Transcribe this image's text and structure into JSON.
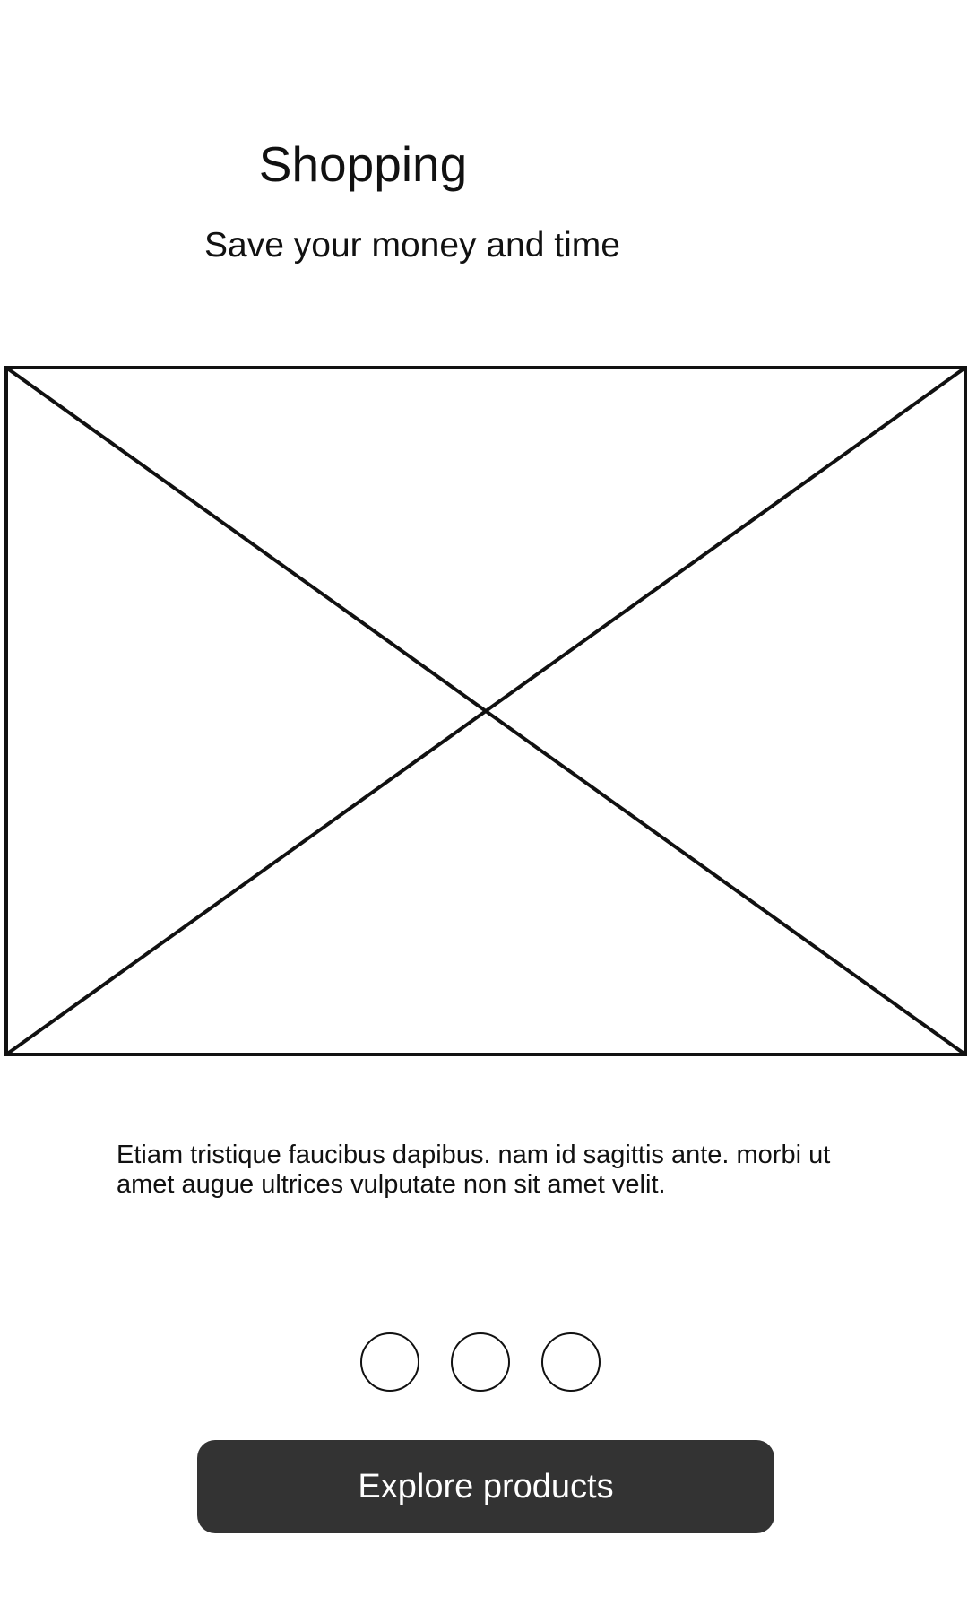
{
  "header": {
    "title": "Shopping",
    "subtitle": "Save your money and time"
  },
  "hero_image": {
    "icon": "image-placeholder-icon"
  },
  "content": {
    "description": "Etiam tristique faucibus dapibus. nam id sagittis ante. morbi ut amet augue ultrices vulputate non sit amet velit."
  },
  "pager": {
    "page_count": 3
  },
  "actions": {
    "primary_label": "Explore products"
  },
  "colors": {
    "background": "#ffffff",
    "text": "#111111",
    "button_background": "#333333",
    "button_text": "#ffffff"
  }
}
